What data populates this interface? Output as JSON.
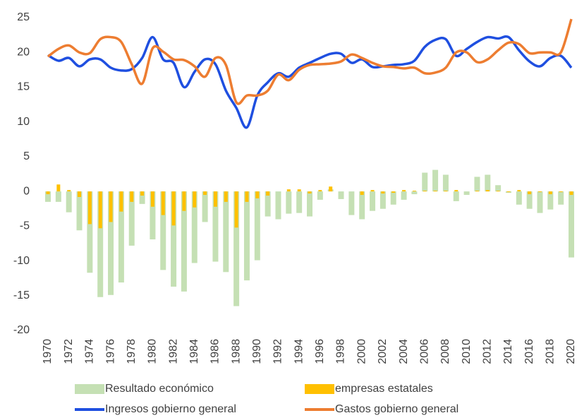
{
  "chart_data": {
    "type": "bar_line",
    "categories": [
      "1970",
      null,
      "1972",
      null,
      "1974",
      null,
      "1976",
      null,
      "1978",
      null,
      "1980",
      null,
      "1982",
      null,
      "1984",
      null,
      "1986",
      null,
      "1988",
      null,
      "1990",
      null,
      "1992",
      null,
      "1994",
      null,
      "1996",
      null,
      "1998",
      null,
      "2000",
      null,
      "2002",
      null,
      "2004",
      null,
      "2006",
      null,
      "2008",
      null,
      "2010",
      null,
      "2012",
      null,
      "2014",
      null,
      "2016",
      null,
      "2018",
      null,
      "2020"
    ],
    "series": [
      {
        "name": "Resultado económico",
        "type": "bar",
        "color": "#c5e0b4",
        "values": [
          -1.5,
          -1.5,
          -3,
          -5.6,
          -11.7,
          -15.2,
          -14.9,
          -13.1,
          -7.8,
          -1.8,
          -6.9,
          -11.3,
          -13.7,
          -14.4,
          -10.3,
          -4.4,
          -10.1,
          -11.6,
          -16.5,
          -12.8,
          -9.9,
          -3.6,
          -4.0,
          -3.2,
          -3.1,
          -3.6,
          -1.2,
          0.3,
          -1.1,
          -3.4,
          -4.0,
          -2.8,
          -2.5,
          -1.9,
          -1.2,
          -0.4,
          2.7,
          3.1,
          2.4,
          -1.4,
          -0.5,
          2.1,
          2.4,
          0.9,
          -0.2,
          -1.9,
          -2.5,
          -3.1,
          -2.6,
          -1.9,
          -9.5
        ]
      },
      {
        "name": "empresas estatales",
        "type": "bar",
        "color": "#ffc000",
        "values": [
          -0.4,
          1.0,
          0.2,
          -0.8,
          -4.7,
          -5.3,
          -4.4,
          -2.9,
          -1.5,
          -0.6,
          -2.2,
          -3.4,
          -4.9,
          -2.8,
          -2.3,
          -0.5,
          -2.2,
          -1.5,
          -5.2,
          -1.5,
          -1.0,
          -0.6,
          0,
          0.3,
          0.3,
          -0.3,
          0.2,
          0.7,
          0,
          0,
          -0.5,
          0.2,
          -0.3,
          -0.2,
          0.2,
          0.1,
          0.1,
          0.1,
          0.1,
          0.2,
          0,
          0.1,
          0.2,
          0.1,
          -0.1,
          0.2,
          -0.4,
          -0.1,
          -0.4,
          -0.1,
          -0.5
        ]
      },
      {
        "name": "Ingresos gobierno general",
        "type": "line",
        "color": "#1f4fe0",
        "values": [
          19.6,
          18.8,
          19.2,
          18.0,
          19.0,
          19.0,
          17.8,
          17.4,
          17.6,
          19.2,
          22.2,
          19.0,
          18.5,
          15.0,
          17.2,
          19.0,
          18.3,
          14.5,
          12.0,
          9.2,
          13.8,
          15.7,
          17.0,
          16.5,
          17.8,
          18.5,
          19.2,
          19.8,
          19.8,
          18.5,
          19.0,
          17.9,
          18.0,
          18.2,
          18.3,
          18.8,
          20.8,
          21.8,
          21.9,
          19.5,
          20.5,
          21.5,
          22.2,
          22.0,
          22.2,
          20.3,
          18.7,
          18.0,
          19.2,
          19.5,
          17.8
        ]
      },
      {
        "name": "Gastos gobierno general",
        "type": "line",
        "color": "#ed7d31",
        "values": [
          19.4,
          20.5,
          21.0,
          20.0,
          19.9,
          21.9,
          22.2,
          21.5,
          18.3,
          15.5,
          20.6,
          20.1,
          19.0,
          18.9,
          18.0,
          16.5,
          19.2,
          18.2,
          12.8,
          13.8,
          13.8,
          14.5,
          16.8,
          16.0,
          17.5,
          18.2,
          18.3,
          18.4,
          18.7,
          19.7,
          19.2,
          18.5,
          18.0,
          17.9,
          17.7,
          17.8,
          17.0,
          17.1,
          17.8,
          20.0,
          20.0,
          18.6,
          19.0,
          20.3,
          21.4,
          21.2,
          19.9,
          20.0,
          20.0,
          20.0,
          24.8
        ]
      }
    ],
    "ylim": [
      -20,
      25
    ],
    "yticks": [
      -20,
      -15,
      -10,
      -5,
      0,
      5,
      10,
      15,
      20,
      25
    ],
    "grid": false,
    "legend": "bottom"
  }
}
